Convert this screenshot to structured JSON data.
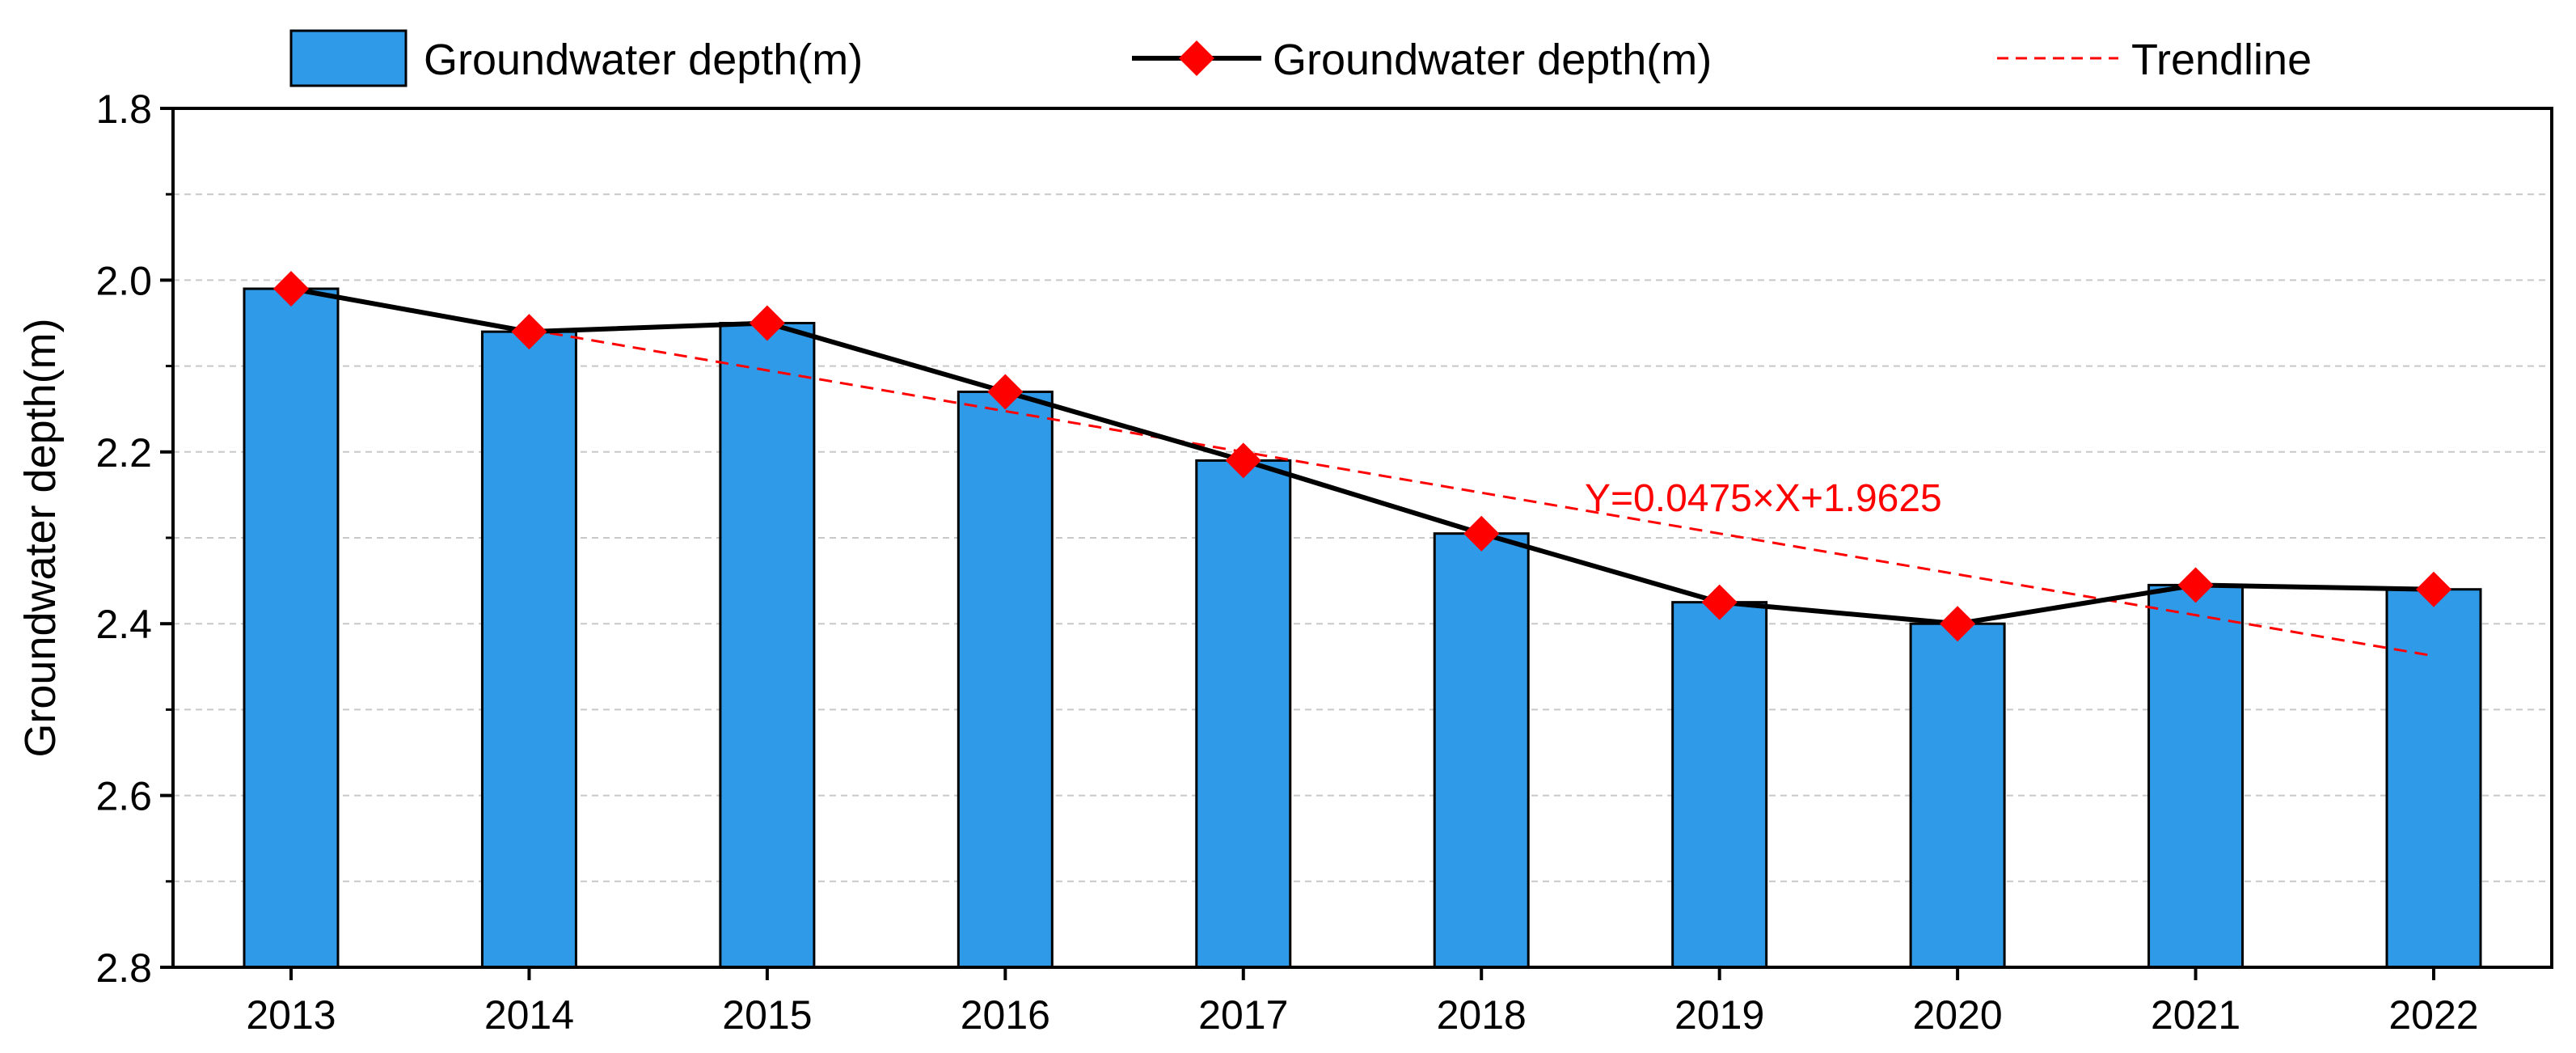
{
  "chart_data": {
    "type": "bar",
    "categories": [
      "2013",
      "2014",
      "2015",
      "2016",
      "2017",
      "2018",
      "2019",
      "2020",
      "2021",
      "2022"
    ],
    "series": [
      {
        "name": "Groundwater depth(m)",
        "kind": "bar",
        "color": "#2f9ae8",
        "values": [
          2.01,
          2.06,
          2.05,
          2.13,
          2.21,
          2.295,
          2.375,
          2.4,
          2.355,
          2.36
        ]
      },
      {
        "name": "Groundwater depth(m)",
        "kind": "line",
        "color": "#000000",
        "marker_color": "#ff0000",
        "values": [
          2.01,
          2.06,
          2.05,
          2.13,
          2.21,
          2.295,
          2.375,
          2.4,
          2.355,
          2.36
        ]
      },
      {
        "name": "Trendline",
        "kind": "trend",
        "color": "#ff0000",
        "slope": 0.0475,
        "intercept": 1.9625,
        "x_start": 2,
        "x_end": 10
      }
    ],
    "annotation": "Y=0.0475×X+1.9625",
    "title": "",
    "xlabel": "",
    "ylabel": "Groundwater depth(m)",
    "ylim": [
      1.8,
      2.8
    ],
    "y_inverted": true,
    "yticks": [
      "1.8",
      "2.0",
      "2.2",
      "2.4",
      "2.6",
      "2.8"
    ],
    "ytick_values": [
      1.8,
      2.0,
      2.2,
      2.4,
      2.6,
      2.8
    ],
    "y_minor_values": [
      1.9,
      2.1,
      2.3,
      2.5,
      2.7
    ],
    "grid": true,
    "legend_position": "top"
  }
}
